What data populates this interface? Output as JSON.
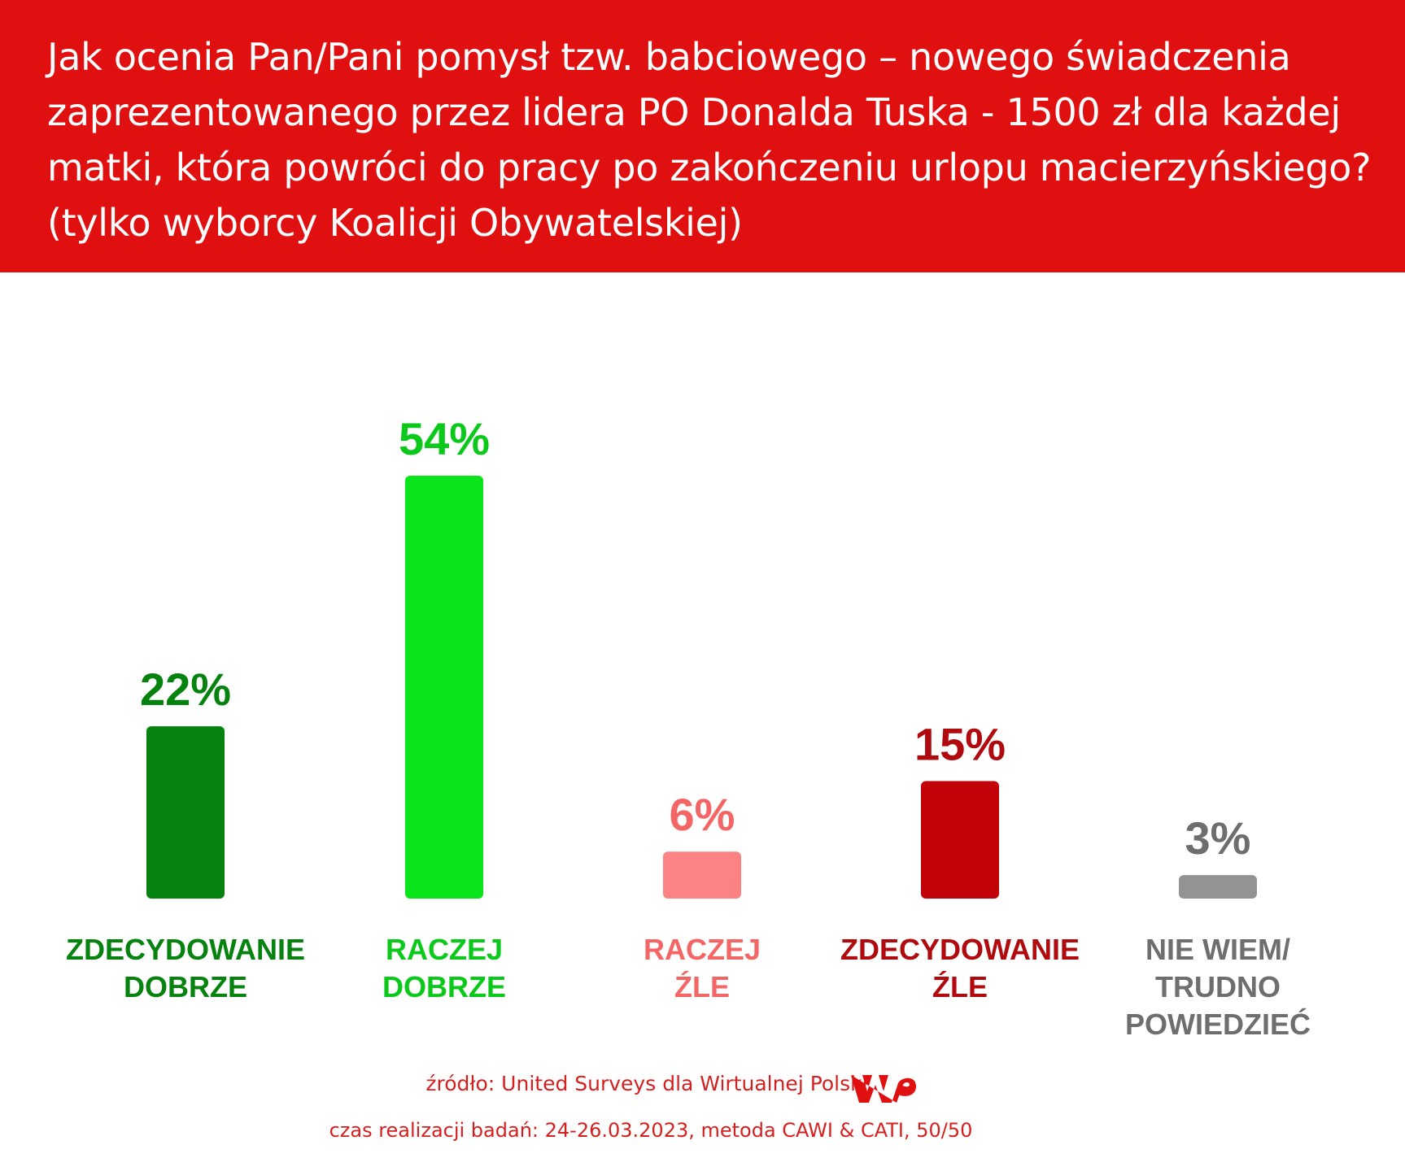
{
  "header": {
    "title": "Jak ocenia Pan/Pani pomysł tzw. babciowego – nowego świadczenia zaprezentowanego przez lidera PO Donalda Tuska - 1500 zł dla każdej matki, która powróci do pracy po zakończeniu urlopu macierzyńskiego? (tylko wyborcy Koalicji Obywatelskiej)"
  },
  "chart_data": {
    "type": "bar",
    "title": "Jak ocenia Pan/Pani pomysł tzw. babciowego – nowego świadczenia zaprezentowanego przez lidera PO Donalda Tuska - 1500 zł dla każdej matki, która powróci do pracy po zakończeniu urlopu macierzyńskiego? (tylko wyborcy Koalicji Obywatelskiej)",
    "categories": [
      [
        "ZDECYDOWANIE",
        "DOBRZE"
      ],
      [
        "RACZEJ",
        "DOBRZE"
      ],
      [
        "RACZEJ",
        "ŹLE"
      ],
      [
        "ZDECYDOWANIE",
        "ŹLE"
      ],
      [
        "NIE WIEM/",
        "TRUDNO",
        "POWIEDZIEĆ"
      ]
    ],
    "values": [
      22,
      54,
      6,
      15,
      3
    ],
    "value_labels": [
      "22%",
      "54%",
      "6%",
      "15%",
      "3%"
    ],
    "unit": "%",
    "colors": [
      "#06820f",
      "#0ae41a",
      "#fc8383",
      "#c20208",
      "#939393"
    ],
    "label_colors": [
      "#06820f",
      "#0bc91a",
      "#f46565",
      "#b00a0e",
      "#6e6e6e"
    ],
    "ylim": [
      0,
      54
    ],
    "grid": false,
    "legend": "none"
  },
  "footer": {
    "source": "źródło: United Surveys dla Wirtualnej Polski",
    "date_method": "czas realizacji badań: 24-26.03.2023, metoda CAWI & CATI, 50/50",
    "logo_text": "WP",
    "logo_color": "#e11010"
  }
}
